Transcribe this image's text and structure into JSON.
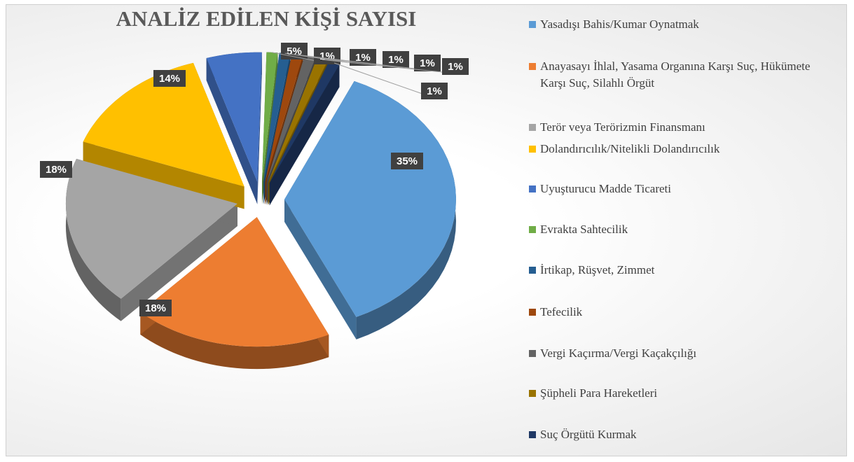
{
  "chart_data": {
    "type": "pie",
    "title": "ANALİZ EDİLEN KİŞİ SAYISI",
    "categories": [
      "Yasadışı Bahis/Kumar Oynatmak",
      "Anayasayı İhlal, Yasama Organına Karşı Suç, Hükümete Karşı Suç, Silahlı Örgüt",
      "Terör veya Terörizmin Finansmanı",
      "Dolandırıcılık/Nitelikli Dolandırıcılık",
      "Uyuşturucu Madde Ticareti",
      "Evrakta Sahtecilik",
      "İrtikap, Rüşvet, Zimmet",
      "Tefecilik",
      "Vergi Kaçırma/Vergi Kaçakçılığı",
      "Şüpheli Para Hareketleri",
      "Suç Örgütü Kurmak"
    ],
    "values": [
      35,
      18,
      18,
      14,
      5,
      1,
      1,
      1,
      1,
      1,
      1
    ],
    "value_labels": [
      "35%",
      "18%",
      "18%",
      "14%",
      "5%",
      "1%",
      "1%",
      "1%",
      "1%",
      "1%",
      "1%"
    ],
    "colors": [
      "#5b9bd5",
      "#ed7d31",
      "#a5a5a5",
      "#ffc000",
      "#4472c4",
      "#70ad47",
      "#255e91",
      "#9e480e",
      "#636363",
      "#997300",
      "#1f3864"
    ],
    "legend": "right"
  }
}
